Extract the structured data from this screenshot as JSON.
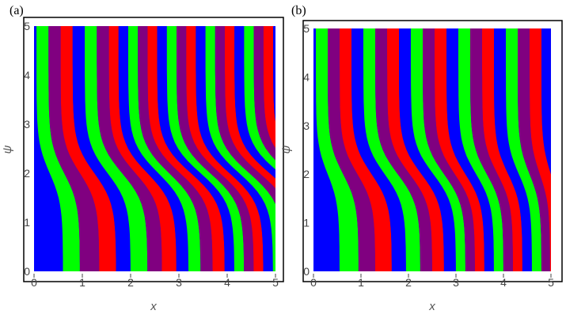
{
  "chart_data": [
    {
      "type": "heatmap",
      "panel_label": "(a)",
      "title": "",
      "xlabel": "x",
      "ylabel": "ψ",
      "xlim": [
        0,
        5
      ],
      "ylim": [
        0,
        5
      ],
      "xticks": [
        "0",
        "1",
        "2",
        "3",
        "4",
        "5"
      ],
      "yticks": [
        "0",
        "1",
        "2",
        "3",
        "4",
        "5"
      ],
      "colors": [
        "#0000ff",
        "#00ff00",
        "#800080",
        "#ff0000"
      ],
      "stripe_boundaries_at_psi_0": [
        0.6,
        0.95,
        1.35,
        1.7,
        2.0,
        2.35,
        2.65,
        2.95,
        3.2,
        3.45,
        3.7,
        3.95,
        4.15,
        4.35,
        4.55,
        4.75,
        4.95
      ],
      "stripe_boundaries_at_psi_5": [
        0.05,
        0.3,
        0.55,
        0.8,
        1.05,
        1.3,
        1.55,
        1.75,
        1.95,
        2.15,
        2.35,
        2.55,
        2.75,
        2.95,
        3.15,
        3.35,
        3.55,
        3.75,
        3.95,
        4.15,
        4.35,
        4.55,
        4.75,
        4.95
      ],
      "bend_psi": 2.0
    },
    {
      "type": "heatmap",
      "panel_label": "(b)",
      "title": "",
      "xlabel": "x",
      "ylabel": "ψ",
      "xlim": [
        0,
        5
      ],
      "ylim": [
        0,
        5
      ],
      "xticks": [
        "0",
        "1",
        "2",
        "3",
        "4",
        "5"
      ],
      "yticks": [
        "0",
        "1",
        "2",
        "3",
        "4",
        "5"
      ],
      "colors": [
        "#0000ff",
        "#00ff00",
        "#800080",
        "#ff0000"
      ],
      "stripe_boundaries_at_psi_0": [
        0.55,
        0.95,
        1.3,
        1.65,
        1.95,
        2.25,
        2.5,
        2.75,
        3.0,
        3.2,
        3.4,
        3.6,
        3.8,
        4.0,
        4.2,
        4.4,
        4.6,
        4.8,
        4.98
      ],
      "stripe_boundaries_at_psi_5": [
        0.05,
        0.3,
        0.55,
        0.8,
        1.05,
        1.3,
        1.55,
        1.8,
        2.05,
        2.3,
        2.55,
        2.8,
        3.05,
        3.3,
        3.55,
        3.8,
        4.05,
        4.3,
        4.55,
        4.8
      ],
      "bend_psi": 2.0
    }
  ]
}
